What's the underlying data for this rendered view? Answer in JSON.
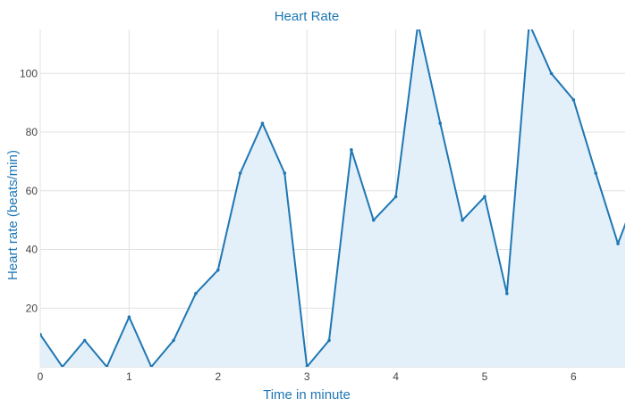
{
  "colors": {
    "accent": "#1f77b4",
    "fill": "#e4f0f9",
    "grid": "#e1e1e1",
    "tick_text": "#444444"
  },
  "chart_data": {
    "type": "area",
    "title": "Heart Rate",
    "xlabel": "Time in minute",
    "ylabel": "Heart rate (beats/min)",
    "xlim": [
      0,
      6.58
    ],
    "ylim": [
      0,
      115
    ],
    "xticks": [
      0,
      1,
      2,
      3,
      4,
      5,
      6
    ],
    "yticks": [
      20,
      40,
      60,
      80,
      100
    ],
    "grid": true,
    "series": [
      {
        "x": [
          0,
          0.25,
          0.5,
          0.75,
          1.0,
          1.25,
          1.5,
          1.75,
          2.0,
          2.25,
          2.5,
          2.75,
          3.0,
          3.25,
          3.5,
          3.75,
          4.0,
          4.25,
          4.5,
          4.75,
          5.0,
          5.25,
          5.5,
          5.75,
          6.0,
          6.25,
          6.5,
          6.6
        ],
        "y": [
          11,
          0,
          9,
          0,
          17,
          0,
          9,
          25,
          33,
          66,
          83,
          66,
          0,
          9,
          74,
          50,
          58,
          117,
          83,
          50,
          58,
          25,
          117,
          100,
          91,
          66,
          42,
          50
        ]
      }
    ]
  }
}
